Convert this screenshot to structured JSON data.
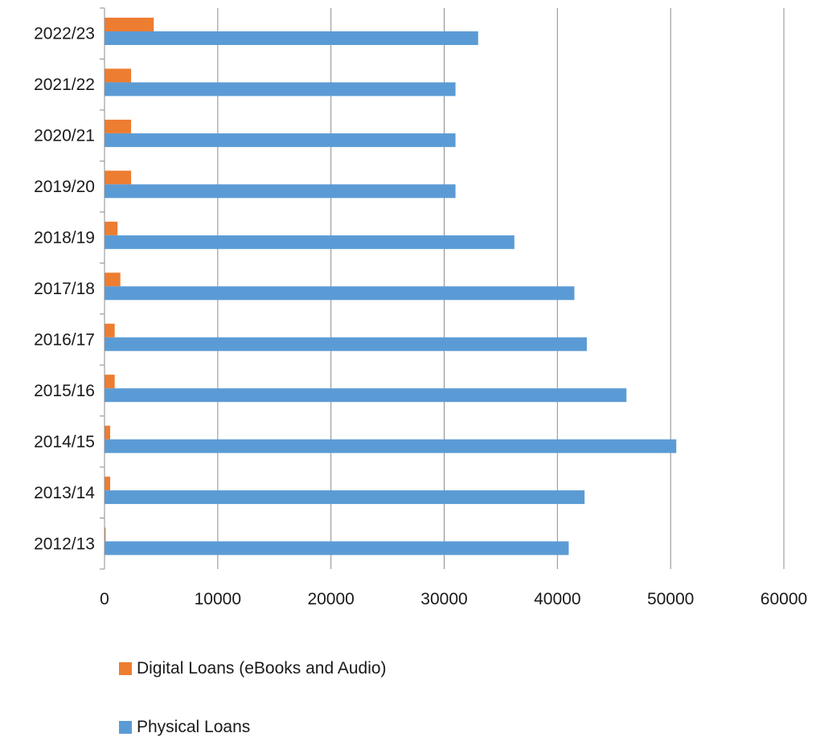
{
  "chart_data": {
    "type": "bar",
    "orientation": "horizontal",
    "categories": [
      "2012/13",
      "2013/14",
      "2014/15",
      "2015/16",
      "2016/17",
      "2017/18",
      "2018/19",
      "2019/20",
      "2020/21",
      "2021/22",
      "2022/23"
    ],
    "series": [
      {
        "name": "Digital Loans (eBooks and Audio)",
        "color": "#ed7d31",
        "values": [
          100,
          500,
          500,
          900,
          900,
          1400,
          1150,
          2350,
          2350,
          2350,
          4350
        ]
      },
      {
        "name": "Physical Loans",
        "color": "#5b9bd5",
        "values": [
          41000,
          42400,
          50500,
          46100,
          42600,
          41500,
          36200,
          31000,
          31000,
          31000,
          33000
        ]
      }
    ],
    "xlim": [
      0,
      60000
    ],
    "x_ticks": [
      "0",
      "10000",
      "20000",
      "30000",
      "40000",
      "50000",
      "60000"
    ],
    "grid": true,
    "legend_position": "bottom-left",
    "title": "",
    "xlabel": "",
    "ylabel": ""
  }
}
